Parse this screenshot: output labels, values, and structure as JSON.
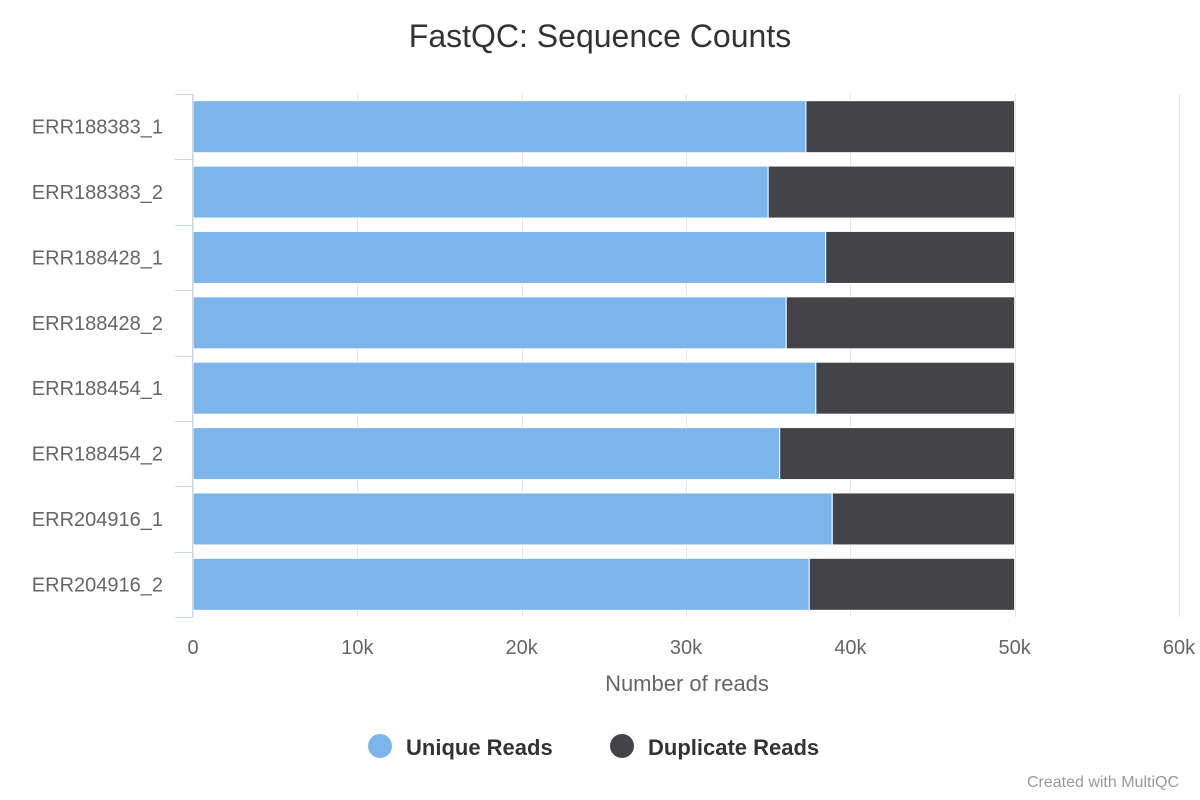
{
  "chart_data": {
    "type": "bar",
    "orientation": "horizontal",
    "stacked": true,
    "title": "FastQC: Sequence Counts",
    "xlabel": "Number of reads",
    "ylabel": "",
    "xlim": [
      0,
      60000
    ],
    "x_ticks": [
      0,
      10000,
      20000,
      30000,
      40000,
      50000,
      60000
    ],
    "x_tick_labels": [
      "0",
      "10k",
      "20k",
      "30k",
      "40k",
      "50k",
      "60k"
    ],
    "categories": [
      "ERR188383_1",
      "ERR188383_2",
      "ERR188428_1",
      "ERR188428_2",
      "ERR188454_1",
      "ERR188454_2",
      "ERR204916_1",
      "ERR204916_2"
    ],
    "series": [
      {
        "name": "Unique Reads",
        "color": "#7cb5ec",
        "values": [
          37300,
          35000,
          38500,
          36100,
          37900,
          35700,
          38900,
          37500
        ]
      },
      {
        "name": "Duplicate Reads",
        "color": "#434348",
        "values": [
          12700,
          15000,
          11500,
          13900,
          12100,
          14300,
          11100,
          12500
        ]
      }
    ],
    "grid": true,
    "legend_position": "bottom-center"
  },
  "credit": "Created with MultiQC"
}
